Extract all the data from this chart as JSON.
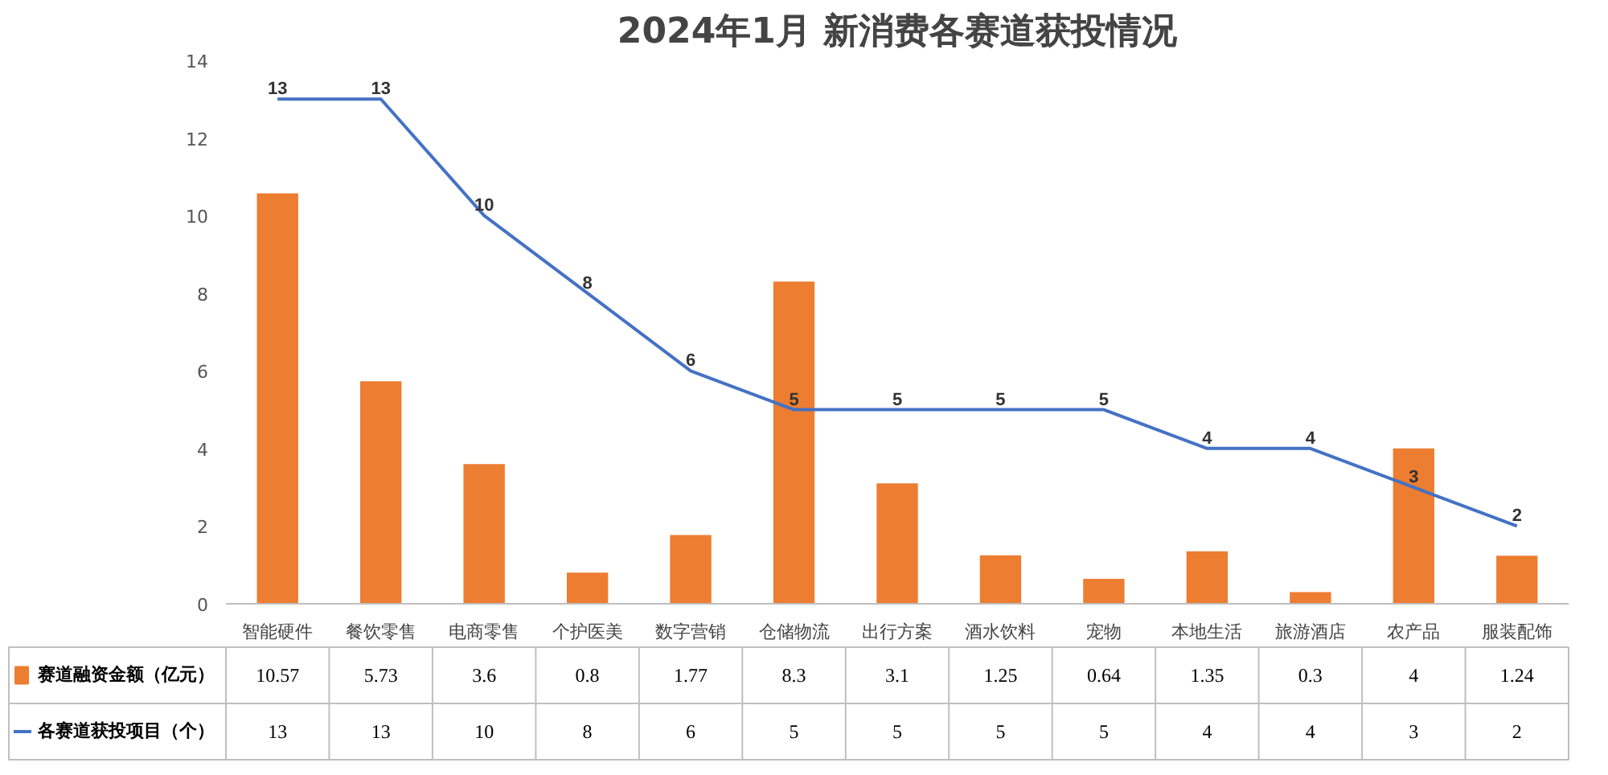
{
  "chart_data": {
    "type": "bar",
    "title": "2024年1月 新消费各赛道获投情况",
    "categories": [
      "智能硬件",
      "餐饮零售",
      "电商零售",
      "个护医美",
      "数字营销",
      "仓储物流",
      "出行方案",
      "酒水饮料",
      "宠物",
      "本地生活",
      "旅游酒店",
      "农产品",
      "服装配饰"
    ],
    "series": [
      {
        "name": "赛道融资金额（亿元）",
        "color": "#ed7d31",
        "values": [
          10.57,
          5.73,
          3.6,
          0.8,
          1.77,
          8.3,
          3.1,
          1.25,
          0.64,
          1.35,
          0.3,
          4,
          1.24
        ]
      },
      {
        "name": "各赛道获投项目（个）",
        "type": "line",
        "color": "#4472c4",
        "values": [
          13,
          13,
          10,
          8,
          6,
          5,
          5,
          5,
          5,
          4,
          4,
          3,
          2
        ]
      }
    ],
    "annotations": [
      {
        "text": "13",
        "x": "智能硬件",
        "y": 13
      },
      {
        "text": "13",
        "x": "餐饮零售",
        "y": 13
      },
      {
        "text": "10",
        "x": "电商零售",
        "y": 10
      },
      {
        "text": "8",
        "x": "个护医美",
        "y": 8
      },
      {
        "text": "6",
        "x": "数字营销",
        "y": 6
      },
      {
        "text": "5",
        "x": "仓储物流",
        "y": 5
      },
      {
        "text": "5",
        "x": "出行方案",
        "y": 5
      },
      {
        "text": "5",
        "x": "酒水饮料",
        "y": 5
      },
      {
        "text": "5",
        "x": "宠物",
        "y": 5
      },
      {
        "text": "4",
        "x": "本地生活",
        "y": 4
      },
      {
        "text": "4",
        "x": "旅游酒店",
        "y": 4
      },
      {
        "text": "3",
        "x": "农产品",
        "y": 3
      },
      {
        "text": "2",
        "x": "服装配饰",
        "y": 2
      }
    ],
    "ylim": [
      0,
      14
    ],
    "yticks": [
      0,
      2,
      4,
      6,
      8,
      10,
      12,
      14
    ],
    "grid": false,
    "legend": "bottom",
    "data_labels": true,
    "marker": "none",
    "line_style": "solid"
  }
}
